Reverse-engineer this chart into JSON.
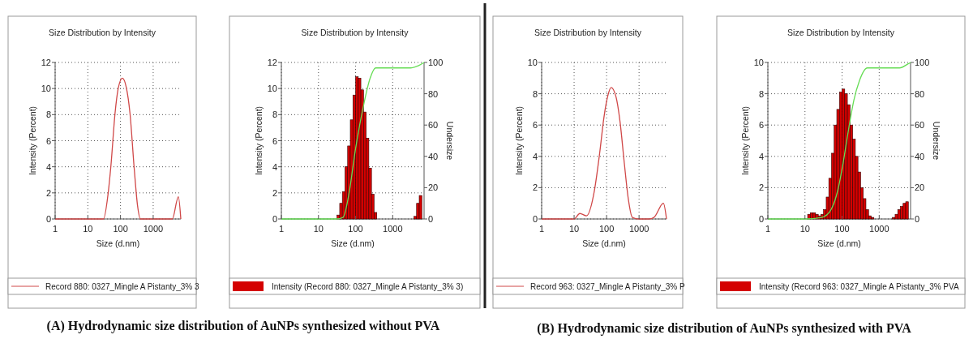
{
  "chart_data": [
    {
      "type": "line",
      "title": "Size Distribution by Intensity",
      "xlabel": "Size (d.nm)",
      "ylabel": "Intensity (Percent)",
      "log": "x",
      "grid": true,
      "legend": "bottom",
      "marker": "none",
      "line_style": "solid",
      "xlim": [
        1,
        7000
      ],
      "xticks": [
        1,
        10,
        100,
        1000
      ],
      "ylim": [
        0,
        12
      ],
      "yticks": [
        0,
        2,
        4,
        6,
        8,
        10,
        12
      ],
      "x": [
        1,
        10,
        30,
        42,
        51,
        68,
        85,
        114,
        150,
        195,
        262,
        333,
        407,
        3830,
        5900,
        7000
      ],
      "series": [
        {
          "name": "Record 880: 0327_Mingle A Pistanty_3% 3",
          "color": "#d04848",
          "values": [
            0,
            0,
            0,
            2,
            4.1,
            8.1,
            10,
            10.8,
            10.1,
            8.1,
            3.9,
            1,
            0,
            0,
            1.7,
            0
          ]
        }
      ],
      "annotations": [
        "(A) Hydrodynamic size distribution of AuNPs synthesized without PVA"
      ]
    },
    {
      "type": "histogram",
      "title": "Size Distribution by Intensity",
      "xlabel": "Size (d.nm)",
      "ylabel": "Intensity (Percent)",
      "y2label": "Undersize",
      "log": "x",
      "grid": true,
      "legend": "bottom",
      "xlim": [
        1,
        7000
      ],
      "xticks": [
        1,
        10,
        100,
        1000
      ],
      "ylim": [
        0,
        12
      ],
      "yticks": [
        0,
        2,
        4,
        6,
        8,
        10,
        12
      ],
      "y2lim": [
        0,
        100
      ],
      "y2ticks": [
        0,
        20,
        40,
        60,
        80,
        100
      ],
      "bins": [
        31.6,
        37.3,
        43.9,
        51.8,
        61.1,
        72.0,
        84.8,
        100,
        117.9,
        138.9,
        163.8,
        193.1,
        227.6,
        268.3,
        316.2,
        372.8,
        3728,
        4394,
        5179,
        6105
      ],
      "series": [
        {
          "name": "Intensity (Record 880: 0327_Mingle A Pistanty_3% 3)",
          "color": "#d40000",
          "values": [
            0.3,
            1.2,
            2.1,
            4.0,
            5.6,
            7.6,
            9.5,
            10.9,
            10.8,
            9.9,
            8.2,
            6.2,
            3.9,
            1.9,
            0.5,
            0,
            0.2,
            1.2,
            1.8
          ]
        },
        {
          "type": "line",
          "axis": "y2",
          "color": "#66dd55",
          "x": [
            1,
            30,
            46,
            65,
            100,
            162,
            247,
            347,
            3000,
            5000,
            7000
          ],
          "values": [
            0,
            0,
            1,
            15,
            45,
            72,
            90,
            96.5,
            96.5,
            98,
            100
          ]
        }
      ]
    },
    {
      "type": "line",
      "title": "Size Distribution by Intensity",
      "xlabel": "Size (d.nm)",
      "ylabel": "Intensity (Percent)",
      "log": "x",
      "grid": true,
      "legend": "bottom",
      "marker": "none",
      "line_style": "solid",
      "xlim": [
        1,
        7000
      ],
      "xticks": [
        1,
        10,
        100,
        1000
      ],
      "ylim": [
        0,
        10
      ],
      "yticks": [
        0,
        2,
        4,
        6,
        8,
        10
      ],
      "x": [
        1,
        10,
        15,
        24,
        42,
        62,
        83,
        110,
        138,
        195,
        260,
        350,
        465,
        620,
        1000,
        2000,
        2880,
        5620,
        7000
      ],
      "series": [
        {
          "name": "Record 963: 0327_Mingle A Pistanty_3% P",
          "color": "#d04848",
          "values": [
            0,
            0,
            0.35,
            0.2,
            1.8,
            4.3,
            6.5,
            7.9,
            8.4,
            7.8,
            6.2,
            3.6,
            1.3,
            0.1,
            0,
            0,
            0.1,
            1.0,
            0
          ]
        }
      ],
      "annotations": [
        "(B) Hydrodynamic size distribution of AuNPs synthesized with PVA"
      ]
    },
    {
      "type": "histogram",
      "title": "Size Distribution by Intensity",
      "xlabel": "Size (d.nm)",
      "ylabel": "Intensity (Percent)",
      "y2label": "Undersize",
      "log": "x",
      "grid": true,
      "legend": "bottom",
      "xlim": [
        1,
        7000
      ],
      "xticks": [
        1,
        10,
        100,
        1000
      ],
      "ylim": [
        0,
        10
      ],
      "yticks": [
        0,
        2,
        4,
        6,
        8,
        10
      ],
      "y2lim": [
        0,
        100
      ],
      "y2ticks": [
        0,
        20,
        40,
        60,
        80,
        100
      ],
      "bins": [
        11.8,
        13.9,
        16.4,
        19.3,
        22.8,
        26.8,
        31.6,
        37.3,
        43.9,
        51.8,
        61.1,
        72.0,
        84.8,
        100,
        117.9,
        138.9,
        163.8,
        193.1,
        227.6,
        268.3,
        316.2,
        372.8,
        439.4,
        517.9,
        610.5,
        719.7,
        2276,
        2683,
        3162,
        3728,
        4394,
        5179,
        6105
      ],
      "series": [
        {
          "name": "Intensity (Record 963: 0327_Mingle A Pistanty_3% PVA",
          "color": "#d40000",
          "values": [
            0.3,
            0.4,
            0.4,
            0.3,
            0.2,
            0.3,
            0.6,
            1.4,
            2.6,
            4.2,
            6.0,
            7.0,
            8.1,
            8.3,
            8.0,
            7.3,
            6.0,
            5.1,
            4.0,
            3.0,
            2.0,
            1.3,
            0.6,
            0.2,
            0.1,
            0,
            0.1,
            0.3,
            0.6,
            0.8,
            1.0,
            1.1
          ]
        },
        {
          "type": "line",
          "axis": "y2",
          "color": "#66dd55",
          "x": [
            1,
            10,
            28,
            46,
            76,
            107,
            149,
            208,
            290,
            480,
            3550,
            5900,
            7000
          ],
          "values": [
            0,
            0,
            1,
            4.5,
            18,
            36,
            57,
            76,
            88,
            96.5,
            96.5,
            99,
            100
          ]
        }
      ]
    }
  ]
}
